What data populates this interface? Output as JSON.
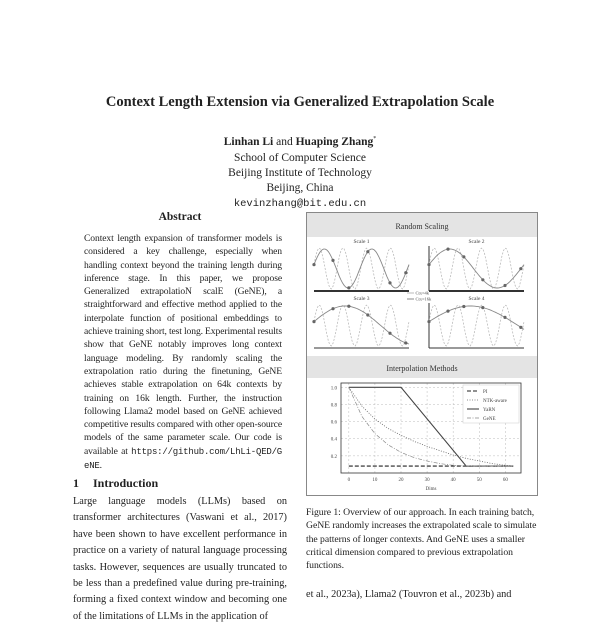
{
  "paper": {
    "title": "Context Length Extension via Generalized Extrapolation Scale",
    "author1": "Linhan Li",
    "and": "and",
    "author2": "Huaping Zhang",
    "author2_mark": "*",
    "affiliation1": "School of Computer Science",
    "affiliation2": "Beijing Institute of Technology",
    "affiliation3": "Beijing, China",
    "email": "kevinzhang@bit.edu.cn"
  },
  "abstract": {
    "heading": "Abstract",
    "text": "Context length expansion of transformer models is considered a key challenge, especially when handling context beyond the training length during inference stage.  In this paper, we propose Generalized extrapolatioN scalE (GeNE), a straightforward and effective method applied to the interpolate function of positional embeddings to achieve training short, test long.  Experimental results show that GeNE notably improves long context language modeling. By randomly scaling the extrapolation ratio during the finetuning, GeNE achieves stable extrapolation on 64k contexts by training on 16k length.  Further, the instruction following Llama2 model based on GeNE achieved competitive results compared with other open-source models of the same parameter scale. Our code is available at ",
    "code_url": "https://github.com/LhLi-QED/GeNE",
    "end": "."
  },
  "introduction": {
    "number": "1",
    "heading": "Introduction",
    "text": "Large language models (LLMs) based on transformer architectures (Vaswani et al., 2017) have been shown to have excellent performance in practice on a variety of natural language processing tasks. However, sequences are usually truncated to be less than a predefined value during pre-training, forming a fixed context window and becoming one of the limitations of LLMs in the application of"
  },
  "figure": {
    "panel1_title": "Random Scaling",
    "panel2_title": "Interpolation Methods",
    "scale_titles": [
      "Scale 1",
      "Scale 2",
      "Scale 3",
      "Scale 4"
    ],
    "scale_legend": [
      "Ctx=4k",
      "Ctx=16k"
    ],
    "caption": "Figure 1: Overview of our approach. In each training batch, GeNE randomly increases the extrapolated scale to simulate the patterns of longer contexts. And GeNE uses a smaller critical dimension compared to previous extrapolation functions."
  },
  "chart_data": {
    "type": "line",
    "title": "Interpolation Methods",
    "xlabel": "Dims",
    "ylabel": "",
    "xlim": [
      -3,
      66
    ],
    "ylim": [
      0,
      1.05
    ],
    "xticks": [
      "0",
      "10",
      "20",
      "30",
      "40",
      "50",
      "60"
    ],
    "yticks": [
      "1.0",
      "0.8",
      "0.6",
      "0.4",
      "0.2"
    ],
    "grid": true,
    "legend": "top-right",
    "series": [
      {
        "name": "PI",
        "style": "dashed",
        "x": [
          0,
          63
        ],
        "y": [
          0.08,
          0.08
        ]
      },
      {
        "name": "NTK-aware",
        "style": "dotted",
        "x": [
          0,
          5,
          10,
          15,
          20,
          25,
          30,
          35,
          40,
          45,
          50,
          55,
          60,
          63
        ],
        "y": [
          1.0,
          0.78,
          0.63,
          0.52,
          0.44,
          0.37,
          0.31,
          0.26,
          0.21,
          0.17,
          0.14,
          0.11,
          0.09,
          0.08
        ]
      },
      {
        "name": "YaRN",
        "style": "solid",
        "x": [
          0,
          20,
          45,
          63
        ],
        "y": [
          1.0,
          1.0,
          0.08,
          0.08
        ]
      },
      {
        "name": "GeNE",
        "style": "dashdot",
        "x": [
          0,
          5,
          10,
          15,
          20,
          25,
          30,
          35,
          40,
          45,
          50,
          55,
          63
        ],
        "y": [
          1.0,
          0.66,
          0.46,
          0.33,
          0.24,
          0.18,
          0.14,
          0.11,
          0.09,
          0.085,
          0.08,
          0.08,
          0.08
        ]
      }
    ]
  },
  "continuation": "et al., 2023a), Llama2 (Touvron et al., 2023b) and"
}
